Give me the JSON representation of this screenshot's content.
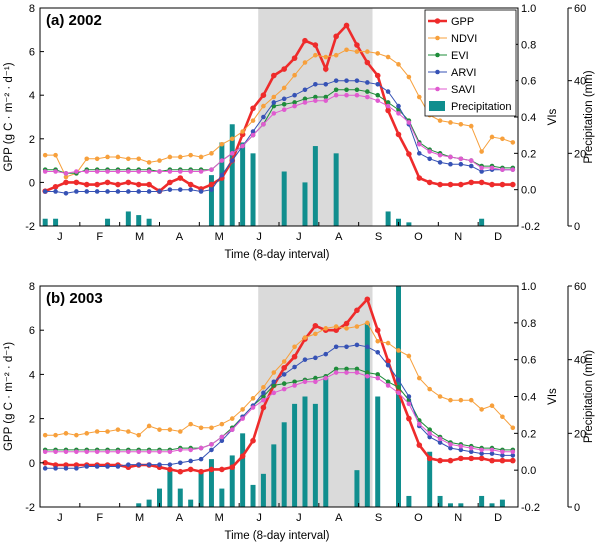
{
  "chart_data": [
    {
      "type": "line",
      "panel_label": "(a) 2002",
      "xlabel": "Time (8-day interval)",
      "ylabel_left": "GPP (g C · m⁻² · d⁻¹)",
      "ylabel_right_inner": "VIs",
      "ylabel_right_outer": "Precipitation (mm)",
      "xlim": [
        0,
        46
      ],
      "ylim_left": [
        -2,
        8
      ],
      "ylim_vis": [
        -0.2,
        1.0
      ],
      "ylim_precip": [
        0,
        60
      ],
      "yticks_left": [
        "-2",
        "0",
        "2",
        "4",
        "6",
        "8"
      ],
      "yticks_vis": [
        "-0.2",
        "0.0",
        "0.2",
        "0.4",
        "0.6",
        "0.8",
        "1.0"
      ],
      "yticks_precip": [
        "0",
        "20",
        "40",
        "60"
      ],
      "month_labels": [
        "J",
        "F",
        "M",
        "A",
        "M",
        "J",
        "J",
        "A",
        "S",
        "O",
        "N",
        "D"
      ],
      "shaded_region": [
        21,
        32
      ],
      "legend": {
        "position": "top-right",
        "entries": [
          "GPP",
          "NDVI",
          "EVI",
          "ARVI",
          "SAVI",
          "Precipitation"
        ]
      },
      "colors": {
        "GPP": "#ee2b2b",
        "NDVI": "#f7a03c",
        "EVI": "#1e8c3a",
        "ARVI": "#3652b5",
        "SAVI": "#e05bd0",
        "Precipitation": "#108e8e",
        "shade": "#dadada"
      },
      "series": [
        {
          "name": "GPP",
          "axis": "left",
          "values": [
            -0.4,
            -0.2,
            0.0,
            0.0,
            -0.1,
            -0.1,
            0.0,
            -0.1,
            0.0,
            -0.1,
            -0.1,
            -0.4,
            0.0,
            0.2,
            -0.1,
            -0.3,
            -0.1,
            0.2,
            1.0,
            2.2,
            3.4,
            4.0,
            4.9,
            5.2,
            5.7,
            6.5,
            6.3,
            5.2,
            6.7,
            7.2,
            6.3,
            5.5,
            4.9,
            3.3,
            2.2,
            1.3,
            0.2,
            0.0,
            -0.1,
            -0.1,
            -0.1,
            0.0,
            0.0,
            -0.1,
            -0.1,
            -0.1
          ]
        },
        {
          "name": "NDVI",
          "axis": "vis",
          "values": [
            0.19,
            0.19,
            0.07,
            0.09,
            0.17,
            0.17,
            0.18,
            0.18,
            0.17,
            0.17,
            0.15,
            0.16,
            0.18,
            0.18,
            0.19,
            0.18,
            0.2,
            0.25,
            0.28,
            0.32,
            0.38,
            0.46,
            0.51,
            0.56,
            0.63,
            0.7,
            0.74,
            0.73,
            0.74,
            0.77,
            0.76,
            0.76,
            0.75,
            0.73,
            0.69,
            0.62,
            0.51,
            0.41,
            0.38,
            0.37,
            0.36,
            0.35,
            0.21,
            0.29,
            0.28,
            0.26
          ]
        },
        {
          "name": "EVI",
          "axis": "vis",
          "values": [
            0.11,
            0.11,
            0.09,
            0.09,
            0.11,
            0.11,
            0.11,
            0.11,
            0.11,
            0.11,
            0.11,
            0.1,
            0.11,
            0.11,
            0.11,
            0.11,
            0.11,
            0.16,
            0.2,
            0.24,
            0.3,
            0.36,
            0.46,
            0.47,
            0.48,
            0.5,
            0.51,
            0.51,
            0.55,
            0.55,
            0.55,
            0.54,
            0.52,
            0.48,
            0.44,
            0.38,
            0.26,
            0.22,
            0.2,
            0.18,
            0.17,
            0.16,
            0.13,
            0.13,
            0.12,
            0.12
          ]
        },
        {
          "name": "ARVI",
          "axis": "vis",
          "values": [
            -0.01,
            -0.01,
            -0.02,
            -0.01,
            -0.01,
            -0.01,
            -0.01,
            -0.01,
            -0.01,
            -0.01,
            -0.01,
            -0.01,
            0.0,
            0.0,
            0.0,
            -0.01,
            0.0,
            0.08,
            0.16,
            0.24,
            0.32,
            0.4,
            0.48,
            0.5,
            0.52,
            0.55,
            0.58,
            0.58,
            0.6,
            0.6,
            0.6,
            0.59,
            0.58,
            0.54,
            0.46,
            0.36,
            0.2,
            0.17,
            0.15,
            0.14,
            0.14,
            0.13,
            0.1,
            0.11,
            0.11,
            0.11
          ]
        },
        {
          "name": "SAVI",
          "axis": "vis",
          "values": [
            0.1,
            0.1,
            0.09,
            0.1,
            0.1,
            0.1,
            0.1,
            0.1,
            0.1,
            0.1,
            0.1,
            0.1,
            0.1,
            0.1,
            0.1,
            0.1,
            0.11,
            0.16,
            0.2,
            0.24,
            0.3,
            0.36,
            0.42,
            0.44,
            0.46,
            0.48,
            0.49,
            0.49,
            0.52,
            0.52,
            0.52,
            0.51,
            0.49,
            0.46,
            0.42,
            0.37,
            0.25,
            0.21,
            0.19,
            0.18,
            0.17,
            0.16,
            0.12,
            0.12,
            0.11,
            0.11
          ]
        }
      ],
      "precipitation": {
        "name": "Precipitation",
        "axis": "precip",
        "values": [
          2,
          2,
          0,
          0,
          0,
          0,
          2,
          0,
          4,
          3,
          2,
          0,
          0,
          0,
          0,
          0,
          14,
          23,
          28,
          23,
          20,
          0,
          0,
          15,
          0,
          12,
          22,
          0,
          20,
          0,
          0,
          0,
          0,
          4,
          2,
          1,
          0,
          0,
          0,
          0,
          0,
          0,
          2,
          0,
          0,
          0
        ]
      }
    },
    {
      "type": "line",
      "panel_label": "(b) 2003",
      "xlabel": "Time (8-day interval)",
      "ylabel_left": "GPP (g C · m⁻² · d⁻¹)",
      "ylabel_right_inner": "VIs",
      "ylabel_right_outer": "Precipitation (mm)",
      "xlim": [
        0,
        46
      ],
      "ylim_left": [
        -2,
        8
      ],
      "ylim_vis": [
        -0.2,
        1.0
      ],
      "ylim_precip": [
        0,
        60
      ],
      "yticks_left": [
        "-2",
        "0",
        "2",
        "4",
        "6",
        "8"
      ],
      "yticks_vis": [
        "-0.2",
        "0.0",
        "0.2",
        "0.4",
        "0.6",
        "0.8",
        "1.0"
      ],
      "yticks_precip": [
        "0",
        "20",
        "40",
        "60"
      ],
      "month_labels": [
        "J",
        "F",
        "M",
        "A",
        "M",
        "J",
        "J",
        "A",
        "S",
        "O",
        "N",
        "D"
      ],
      "shaded_region": [
        21,
        32
      ],
      "colors": {
        "GPP": "#ee2b2b",
        "NDVI": "#f7a03c",
        "EVI": "#1e8c3a",
        "ARVI": "#3652b5",
        "SAVI": "#e05bd0",
        "Precipitation": "#108e8e",
        "shade": "#dadada"
      },
      "series": [
        {
          "name": "GPP",
          "axis": "left",
          "values": [
            0.0,
            -0.1,
            -0.1,
            -0.1,
            -0.1,
            -0.1,
            -0.1,
            -0.1,
            -0.2,
            -0.1,
            -0.1,
            -0.2,
            -0.3,
            -0.4,
            -0.3,
            -0.4,
            -0.3,
            -0.3,
            -0.2,
            0.3,
            1.0,
            2.5,
            3.5,
            4.3,
            4.8,
            5.6,
            6.2,
            6.0,
            6.0,
            6.3,
            6.9,
            7.4,
            6.0,
            4.6,
            3.2,
            2.0,
            0.8,
            0.2,
            0.1,
            0.1,
            0.2,
            0.2,
            0.2,
            0.1,
            0.1,
            0.1
          ]
        },
        {
          "name": "NDVI",
          "axis": "vis",
          "values": [
            0.19,
            0.19,
            0.2,
            0.19,
            0.2,
            0.21,
            0.21,
            0.22,
            0.21,
            0.19,
            0.24,
            0.22,
            0.22,
            0.21,
            0.25,
            0.23,
            0.23,
            0.25,
            0.28,
            0.33,
            0.39,
            0.45,
            0.53,
            0.59,
            0.67,
            0.72,
            0.74,
            0.77,
            0.78,
            0.77,
            0.78,
            0.8,
            0.7,
            0.69,
            0.65,
            0.62,
            0.5,
            0.44,
            0.4,
            0.38,
            0.38,
            0.38,
            0.33,
            0.35,
            0.29,
            0.23
          ]
        },
        {
          "name": "EVI",
          "axis": "vis",
          "values": [
            0.11,
            0.11,
            0.11,
            0.11,
            0.11,
            0.11,
            0.11,
            0.11,
            0.11,
            0.11,
            0.11,
            0.11,
            0.11,
            0.12,
            0.12,
            0.12,
            0.14,
            0.18,
            0.23,
            0.29,
            0.35,
            0.4,
            0.46,
            0.47,
            0.48,
            0.49,
            0.5,
            0.51,
            0.55,
            0.55,
            0.55,
            0.53,
            0.52,
            0.48,
            0.45,
            0.38,
            0.27,
            0.22,
            0.18,
            0.15,
            0.14,
            0.13,
            0.12,
            0.12,
            0.11,
            0.11
          ]
        },
        {
          "name": "ARVI",
          "axis": "vis",
          "values": [
            0.01,
            0.01,
            0.01,
            0.01,
            0.02,
            0.02,
            0.02,
            0.02,
            0.03,
            0.03,
            0.03,
            0.03,
            0.03,
            0.04,
            0.05,
            0.06,
            0.11,
            0.16,
            0.22,
            0.29,
            0.35,
            0.42,
            0.48,
            0.52,
            0.56,
            0.6,
            0.61,
            0.63,
            0.67,
            0.67,
            0.68,
            0.67,
            0.64,
            0.57,
            0.49,
            0.4,
            0.24,
            0.18,
            0.15,
            0.12,
            0.11,
            0.1,
            0.09,
            0.09,
            0.08,
            0.08
          ]
        },
        {
          "name": "SAVI",
          "axis": "vis",
          "values": [
            0.1,
            0.1,
            0.1,
            0.1,
            0.1,
            0.1,
            0.1,
            0.1,
            0.1,
            0.1,
            0.1,
            0.1,
            0.1,
            0.11,
            0.11,
            0.12,
            0.14,
            0.18,
            0.22,
            0.28,
            0.34,
            0.38,
            0.42,
            0.44,
            0.46,
            0.48,
            0.48,
            0.5,
            0.53,
            0.53,
            0.53,
            0.51,
            0.5,
            0.46,
            0.42,
            0.36,
            0.25,
            0.2,
            0.17,
            0.14,
            0.13,
            0.12,
            0.11,
            0.11,
            0.1,
            0.1
          ]
        }
      ],
      "precipitation": {
        "name": "Precipitation",
        "axis": "precip",
        "values": [
          0,
          0,
          0,
          0,
          0,
          0,
          0,
          0,
          0,
          1,
          2,
          5,
          10,
          5,
          2,
          10,
          13,
          5,
          14,
          20,
          6,
          9,
          17,
          23,
          28,
          30,
          28,
          35,
          0,
          0,
          10,
          50,
          30,
          0,
          60,
          3,
          0,
          15,
          3,
          1,
          1,
          0,
          3,
          1,
          2,
          0
        ]
      }
    }
  ]
}
